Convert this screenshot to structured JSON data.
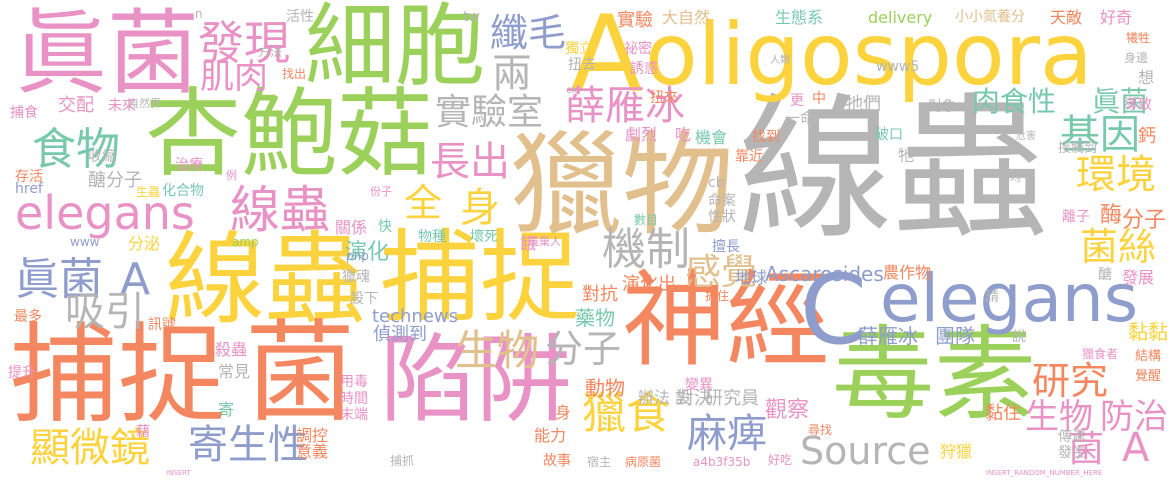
{
  "palette": {
    "orange": "#f4875f",
    "pink": "#e992c5",
    "green": "#9bd15a",
    "yellow": "#fcd33c",
    "tan": "#e2c08d",
    "blue": "#8e9dcc",
    "gray": "#b5b5b5",
    "teal": "#78c9ac"
  },
  "words": [
    {
      "text": "線蟲",
      "color": "gray"
    },
    {
      "text": "獵物",
      "color": "tan"
    },
    {
      "text": "oligospora",
      "color": "yellow"
    },
    {
      "text": "A",
      "color": "yellow"
    },
    {
      "text": "杏鮑菇",
      "color": "green"
    },
    {
      "text": "線蟲",
      "color": "yellow"
    },
    {
      "text": "捕捉",
      "color": "yellow"
    },
    {
      "text": "捕捉",
      "color": "orange"
    },
    {
      "text": "菌",
      "color": "orange"
    },
    {
      "text": "神經",
      "color": "orange"
    },
    {
      "text": "毒素",
      "color": "green"
    },
    {
      "text": "細胞",
      "color": "green"
    },
    {
      "text": "眞菌",
      "color": "pink"
    },
    {
      "text": "陷阱",
      "color": "pink"
    },
    {
      "text": "C",
      "color": "blue"
    },
    {
      "text": "elegans",
      "color": "blue"
    },
    {
      "text": "elegans",
      "color": "pink"
    },
    {
      "text": "線蟲",
      "color": "pink"
    },
    {
      "text": "全",
      "color": "yellow"
    },
    {
      "text": "身",
      "color": "yellow"
    },
    {
      "text": "食物",
      "color": "teal"
    },
    {
      "text": "發現",
      "color": "pink"
    },
    {
      "text": "肌肉",
      "color": "pink"
    },
    {
      "text": "纖毛",
      "color": "blue"
    },
    {
      "text": "兩",
      "color": "gray"
    },
    {
      "text": "實驗室",
      "color": "gray"
    },
    {
      "text": "薛雁冰",
      "color": "pink"
    },
    {
      "text": "長出",
      "color": "pink"
    },
    {
      "text": "機制",
      "color": "gray"
    },
    {
      "text": "感覺",
      "color": "tan"
    },
    {
      "text": "基因",
      "color": "teal"
    },
    {
      "text": "環境",
      "color": "yellow"
    },
    {
      "text": "肉食性",
      "color": "teal"
    },
    {
      "text": "眞菌",
      "color": "teal"
    },
    {
      "text": "菌絲",
      "color": "yellow"
    },
    {
      "text": "眞菌",
      "color": "blue"
    },
    {
      "text": "A",
      "color": "blue"
    },
    {
      "text": "吸引",
      "color": "gray"
    },
    {
      "text": "生物",
      "color": "tan"
    },
    {
      "text": "分子",
      "color": "gray"
    },
    {
      "text": "寄生性",
      "color": "blue"
    },
    {
      "text": "顯微鏡",
      "color": "yellow"
    },
    {
      "text": "獵食",
      "color": "yellow"
    },
    {
      "text": "麻痺",
      "color": "blue"
    },
    {
      "text": "Source",
      "color": "gray"
    },
    {
      "text": "研究",
      "color": "orange"
    },
    {
      "text": "生物",
      "color": "pink"
    },
    {
      "text": "防治",
      "color": "pink"
    },
    {
      "text": "菌",
      "color": "pink"
    },
    {
      "text": "A",
      "color": "pink"
    },
    {
      "text": "薛雁冰",
      "color": "blue"
    },
    {
      "text": "團隊",
      "color": "blue"
    },
    {
      "text": "Ascarosides",
      "color": "blue"
    },
    {
      "text": "藥物",
      "color": "teal"
    },
    {
      "text": "農作物",
      "color": "orange"
    },
    {
      "text": "演化",
      "color": "teal"
    },
    {
      "text": "對抗",
      "color": "orange"
    },
    {
      "text": "演化出",
      "color": "orange"
    },
    {
      "text": "對決",
      "color": "gray"
    },
    {
      "text": "觀察",
      "color": "pink"
    },
    {
      "text": "地球",
      "color": "blue"
    },
    {
      "text": "分子",
      "color": "orange"
    },
    {
      "text": "酶",
      "color": "orange"
    },
    {
      "text": "黏黏",
      "color": "yellow"
    },
    {
      "text": "technews",
      "color": "blue"
    },
    {
      "text": "偵測到",
      "color": "blue"
    },
    {
      "text": "常見",
      "color": "gray"
    },
    {
      "text": "殺蟲",
      "color": "pink"
    },
    {
      "text": "動物",
      "color": "orange"
    },
    {
      "text": "辦法",
      "color": "gray"
    },
    {
      "text": "設",
      "color": "gray"
    },
    {
      "text": "研究員",
      "color": "gray"
    },
    {
      "text": "分泌",
      "color": "yellow"
    },
    {
      "text": "交配",
      "color": "pink"
    },
    {
      "text": "未來",
      "color": "pink"
    },
    {
      "text": "醣分子",
      "color": "gray"
    },
    {
      "text": "生態系",
      "color": "teal"
    },
    {
      "text": "大自然",
      "color": "tan"
    },
    {
      "text": "實驗",
      "color": "orange"
    },
    {
      "text": "delivery",
      "color": "green"
    },
    {
      "text": "小小氮養分",
      "color": "tan"
    },
    {
      "text": "天敵",
      "color": "orange"
    },
    {
      "text": "好奇",
      "color": "pink"
    },
    {
      "text": "獨立",
      "color": "yellow"
    },
    {
      "text": "扭去",
      "color": "gray"
    },
    {
      "text": "扭來",
      "color": "orange"
    },
    {
      "text": "誘惑",
      "color": "pink"
    },
    {
      "text": "祕密",
      "color": "pink"
    },
    {
      "text": "www5",
      "color": "gray"
    },
    {
      "text": "牠們",
      "color": "gray"
    },
    {
      "text": "對象",
      "color": "gray"
    },
    {
      "text": "破口",
      "color": "teal"
    },
    {
      "text": "機會",
      "color": "teal"
    },
    {
      "text": "找到",
      "color": "orange"
    },
    {
      "text": "劇烈",
      "color": "pink"
    },
    {
      "text": "靠近",
      "color": "orange"
    },
    {
      "text": "吃",
      "color": "pink"
    },
    {
      "text": "牠",
      "color": "gray"
    },
    {
      "text": "命案",
      "color": "gray"
    },
    {
      "text": "性狀",
      "color": "gray"
    },
    {
      "text": "cb",
      "color": "gray"
    },
    {
      "text": "擅長",
      "color": "blue"
    },
    {
      "text": "抓住",
      "color": "orange"
    },
    {
      "text": "發展",
      "color": "pink"
    },
    {
      "text": "醣",
      "color": "gray"
    },
    {
      "text": "離子",
      "color": "pink"
    },
    {
      "text": "鈣",
      "color": "orange"
    },
    {
      "text": "接觸到",
      "color": "gray"
    },
    {
      "text": "導致",
      "color": "pink"
    },
    {
      "text": "身邊",
      "color": "gray"
    },
    {
      "text": "犧牲",
      "color": "orange"
    },
    {
      "text": "想",
      "color": "gray"
    },
    {
      "text": "結構",
      "color": "orange"
    },
    {
      "text": "覺醒",
      "color": "orange"
    },
    {
      "text": "獵食者",
      "color": "pink"
    },
    {
      "text": "說",
      "color": "gray"
    },
    {
      "text": "請",
      "color": "gray"
    },
    {
      "text": "黏住",
      "color": "orange"
    },
    {
      "text": "傳遞",
      "color": "gray"
    },
    {
      "text": "發生",
      "color": "gray"
    },
    {
      "text": "狩獵",
      "color": "yellow"
    },
    {
      "text": "尋找",
      "color": "orange"
    },
    {
      "text": "變異",
      "color": "pink"
    },
    {
      "text": "能力",
      "color": "orange"
    },
    {
      "text": "身",
      "color": "orange"
    },
    {
      "text": "故事",
      "color": "orange"
    },
    {
      "text": "宿主",
      "color": "gray"
    },
    {
      "text": "病原菌",
      "color": "orange"
    },
    {
      "text": "a4b3f35b",
      "color": "pink"
    },
    {
      "text": "好吃",
      "color": "pink"
    },
    {
      "text": "捕抓",
      "color": "gray"
    },
    {
      "text": "意義",
      "color": "orange"
    },
    {
      "text": "調控",
      "color": "orange"
    },
    {
      "text": "時間",
      "color": "pink"
    },
    {
      "text": "用毒",
      "color": "pink"
    },
    {
      "text": "末端",
      "color": "pink"
    },
    {
      "text": "寄",
      "color": "teal"
    },
    {
      "text": "藉",
      "color": "pink"
    },
    {
      "text": "提升",
      "color": "pink"
    },
    {
      "text": "最多",
      "color": "orange"
    },
    {
      "text": "訊號",
      "color": "orange"
    },
    {
      "text": "獵魂",
      "color": "gray"
    },
    {
      "text": "設下",
      "color": "gray"
    },
    {
      "text": "餓",
      "color": "pink"
    },
    {
      "text": "壞死",
      "color": "teal"
    },
    {
      "text": "物種",
      "color": "teal"
    },
    {
      "text": "關係",
      "color": "pink"
    },
    {
      "text": "快",
      "color": "teal"
    },
    {
      "text": "化合物",
      "color": "teal"
    },
    {
      "text": "生蟲",
      "color": "yellow"
    },
    {
      "text": "存活",
      "color": "orange"
    },
    {
      "text": "收縮",
      "color": "gray"
    },
    {
      "text": "治療",
      "color": "pink"
    },
    {
      "text": "捕食",
      "color": "pink"
    },
    {
      "text": "自然界",
      "color": "gray"
    },
    {
      "text": "方法",
      "color": "gray"
    },
    {
      "text": "活性",
      "color": "gray"
    },
    {
      "text": "找出",
      "color": "orange"
    },
    {
      "text": "tw",
      "color": "gray"
    },
    {
      "text": "ck",
      "color": "gray"
    },
    {
      "text": "href",
      "color": "blue"
    },
    {
      "text": "www",
      "color": "blue"
    },
    {
      "text": "amp",
      "color": "green"
    },
    {
      "text": "php",
      "color": "blue"
    },
    {
      "text": "數目",
      "color": "teal"
    },
    {
      "text": "中",
      "color": "orange"
    },
    {
      "text": "更",
      "color": "pink"
    },
    {
      "text": "一命",
      "color": "gray"
    },
    {
      "text": "人類",
      "color": "gray"
    },
    {
      "text": "危害",
      "color": "gray"
    },
    {
      "text": "遺棄人",
      "color": "pink"
    },
    {
      "text": "份子",
      "color": "pink"
    },
    {
      "text": "例",
      "color": "pink"
    },
    {
      "text": "n",
      "color": "gray"
    },
    {
      "text": "均",
      "color": "gray"
    },
    {
      "text": "INSERT_RANDOM_NUMBER_HERE",
      "color": "pink"
    },
    {
      "text": "INSERT",
      "color": "pink"
    }
  ]
}
